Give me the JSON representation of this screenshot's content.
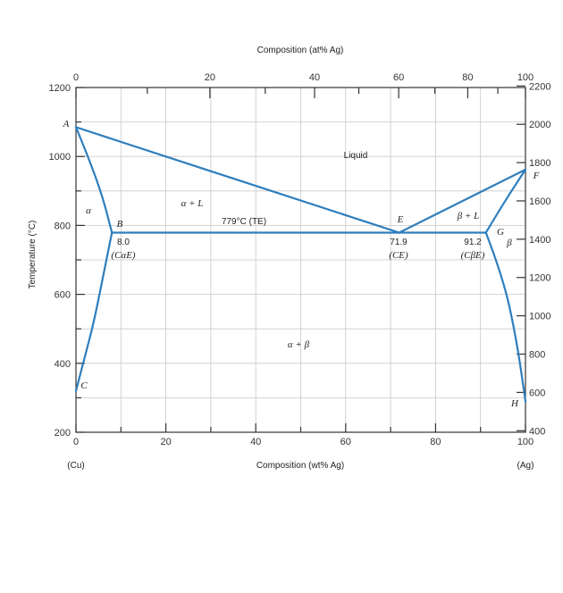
{
  "chart_data": {
    "type": "phase-diagram",
    "title_top": "Composition (at% Ag)",
    "xlabel": "Composition (wt% Ag)",
    "ylabel": "Temperature (°C)",
    "x_end_left": "(Cu)",
    "x_end_right": "(Ag)",
    "xlim": [
      0,
      100
    ],
    "ylim": [
      200,
      1200
    ],
    "x_ticks_wt": [
      "0",
      "20",
      "40",
      "60",
      "80",
      "100"
    ],
    "x_ticks_wt_values": [
      0,
      20,
      40,
      60,
      80,
      100
    ],
    "y_ticks_c": [
      "200",
      "400",
      "600",
      "800",
      "1000",
      "1200"
    ],
    "y_ticks_c_values": [
      200,
      400,
      600,
      800,
      1000,
      1200
    ],
    "x_ticks_at": [
      "0",
      "20",
      "40",
      "60",
      "80",
      "100"
    ],
    "x_ticks_at_values": [
      0,
      20,
      40,
      60,
      80,
      100
    ],
    "y_ticks_f": [
      "400",
      "600",
      "800",
      "1000",
      "1200",
      "1400",
      "1600",
      "1800",
      "2000",
      "2200"
    ],
    "y_ticks_f_values": [
      400,
      600,
      800,
      1000,
      1200,
      1400,
      1600,
      1800,
      2000,
      2200
    ],
    "points": {
      "A": [
        0,
        1085
      ],
      "B": [
        8.0,
        779
      ],
      "C": [
        0,
        320
      ],
      "E": [
        71.9,
        779
      ],
      "F": [
        100,
        962
      ],
      "G": [
        91.2,
        779
      ],
      "H": [
        100,
        290
      ]
    },
    "point_labels": {
      "A": "A",
      "B": "B",
      "C": "C",
      "E": "E",
      "F": "F",
      "G": "G",
      "H": "H"
    },
    "lines": {
      "liquidus_left": [
        [
          0,
          1085
        ],
        [
          71.9,
          779
        ]
      ],
      "liquidus_right": [
        [
          71.9,
          779
        ],
        [
          100,
          962
        ]
      ],
      "solidus_alpha": [
        [
          0,
          1085
        ],
        [
          3,
          990
        ],
        [
          6,
          880
        ],
        [
          8.0,
          779
        ]
      ],
      "solvus_alpha": [
        [
          8.0,
          779
        ],
        [
          6,
          650
        ],
        [
          4,
          520
        ],
        [
          2,
          420
        ],
        [
          0,
          320
        ]
      ],
      "eutectic_isotherm": [
        [
          8.0,
          779
        ],
        [
          91.2,
          779
        ]
      ],
      "solidus_beta": [
        [
          91.2,
          779
        ],
        [
          95,
          862
        ],
        [
          100,
          962
        ]
      ],
      "solvus_beta": [
        [
          91.2,
          779
        ],
        [
          95,
          650
        ],
        [
          98,
          470
        ],
        [
          100,
          290
        ]
      ]
    },
    "region_labels": {
      "liquid": "Liquid",
      "alpha": "α",
      "alpha_plus_liquid": "α + L",
      "beta_plus_liquid": "β + L",
      "beta": "β",
      "alpha_plus_beta": "α + β"
    },
    "annotations": {
      "eutectic_temp": "779°C (TE)",
      "b_comp_value": "8.0",
      "b_comp_label": "(CαE)",
      "e_comp_value": "71.9",
      "e_comp_label": "(CE)",
      "g_comp_value": "91.2",
      "g_comp_label": "(CβE)"
    },
    "grid": true,
    "line_color": "#2e7ebd"
  }
}
